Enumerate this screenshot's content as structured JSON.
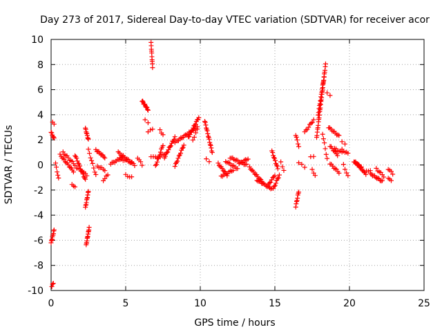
{
  "chart_data": {
    "type": "scatter",
    "title": "Day 273 of 2017, Sidereal Day-to-day VTEC variation (SDTVAR) for receiver acor",
    "xlabel": "GPS time / hours",
    "ylabel": "SDTVAR / TECUs",
    "xlim": [
      0,
      25
    ],
    "ylim": [
      -10,
      10
    ],
    "xticks": [
      "0",
      "5",
      "10",
      "15",
      "20",
      "25"
    ],
    "yticks": [
      "-10",
      "-8",
      "-6",
      "-4",
      "-2",
      "0",
      "2",
      "4",
      "6",
      "8",
      "10"
    ],
    "grid": true,
    "marker": "+",
    "color": "#ff0000",
    "segments": [
      {
        "x0": 0.0,
        "x1": 0.2,
        "y0": 2.6,
        "y1": 2.1,
        "n": 6
      },
      {
        "x0": 0.1,
        "x1": 0.2,
        "y0": 3.4,
        "y1": 3.2,
        "n": 2
      },
      {
        "x0": 0.0,
        "x1": 0.2,
        "y0": -6.2,
        "y1": -5.2,
        "n": 10
      },
      {
        "x0": 0.05,
        "x1": 0.15,
        "y0": -9.7,
        "y1": -9.4,
        "n": 3
      },
      {
        "x0": 0.3,
        "x1": 0.5,
        "y0": 0.1,
        "y1": -1.1,
        "n": 5
      },
      {
        "x0": 0.6,
        "x1": 1.5,
        "y0": 0.8,
        "y1": -0.5,
        "n": 14
      },
      {
        "x0": 0.8,
        "x1": 1.6,
        "y0": 1.0,
        "y1": 0.0,
        "n": 10
      },
      {
        "x0": 1.4,
        "x1": 1.6,
        "y0": -1.5,
        "y1": -1.8,
        "n": 3
      },
      {
        "x0": 1.6,
        "x1": 2.3,
        "y0": 0.8,
        "y1": -1.2,
        "n": 14
      },
      {
        "x0": 1.7,
        "x1": 2.4,
        "y0": -0.2,
        "y1": -0.8,
        "n": 8
      },
      {
        "x0": 2.3,
        "x1": 2.5,
        "y0": 2.9,
        "y1": 2.0,
        "n": 9
      },
      {
        "x0": 2.3,
        "x1": 2.5,
        "y0": -3.4,
        "y1": -2.1,
        "n": 10
      },
      {
        "x0": 2.35,
        "x1": 2.55,
        "y0": -6.4,
        "y1": -5.0,
        "n": 12
      },
      {
        "x0": 2.5,
        "x1": 3.0,
        "y0": 1.2,
        "y1": -0.8,
        "n": 8
      },
      {
        "x0": 3.0,
        "x1": 3.6,
        "y0": 1.2,
        "y1": 0.6,
        "n": 10
      },
      {
        "x0": 3.1,
        "x1": 3.6,
        "y0": -0.1,
        "y1": -0.4,
        "n": 6
      },
      {
        "x0": 3.5,
        "x1": 3.8,
        "y0": -1.2,
        "y1": -0.8,
        "n": 4
      },
      {
        "x0": 4.0,
        "x1": 4.8,
        "y0": 0.1,
        "y1": 0.6,
        "n": 10
      },
      {
        "x0": 4.5,
        "x1": 5.6,
        "y0": 1.0,
        "y1": 0.0,
        "n": 14
      },
      {
        "x0": 4.6,
        "x1": 5.4,
        "y0": 0.5,
        "y1": 0.2,
        "n": 8
      },
      {
        "x0": 5.0,
        "x1": 5.4,
        "y0": -0.8,
        "y1": -1.0,
        "n": 4
      },
      {
        "x0": 5.8,
        "x1": 6.1,
        "y0": 0.6,
        "y1": 0.0,
        "n": 4
      },
      {
        "x0": 6.1,
        "x1": 6.5,
        "y0": 5.1,
        "y1": 4.4,
        "n": 12
      },
      {
        "x0": 6.3,
        "x1": 6.5,
        "y0": 3.6,
        "y1": 3.3,
        "n": 2
      },
      {
        "x0": 6.5,
        "x1": 6.8,
        "y0": 2.6,
        "y1": 2.9,
        "n": 3
      },
      {
        "x0": 6.7,
        "x1": 6.8,
        "y0": 9.7,
        "y1": 7.8,
        "n": 10
      },
      {
        "x0": 6.7,
        "x1": 7.0,
        "y0": 0.6,
        "y1": 0.7,
        "n": 3
      },
      {
        "x0": 7.0,
        "x1": 7.5,
        "y0": -0.1,
        "y1": 1.6,
        "n": 10
      },
      {
        "x0": 7.1,
        "x1": 7.6,
        "y0": 0.5,
        "y1": 0.9,
        "n": 6
      },
      {
        "x0": 7.3,
        "x1": 7.5,
        "y0": 2.8,
        "y1": 2.4,
        "n": 3
      },
      {
        "x0": 7.6,
        "x1": 8.3,
        "y0": 0.6,
        "y1": 2.2,
        "n": 14
      },
      {
        "x0": 8.3,
        "x1": 8.9,
        "y0": -0.1,
        "y1": 1.6,
        "n": 12
      },
      {
        "x0": 8.3,
        "x1": 9.8,
        "y0": 1.8,
        "y1": 3.0,
        "n": 20
      },
      {
        "x0": 9.2,
        "x1": 9.9,
        "y0": 2.2,
        "y1": 3.8,
        "n": 14
      },
      {
        "x0": 9.5,
        "x1": 9.8,
        "y0": 2.0,
        "y1": 2.8,
        "n": 4
      },
      {
        "x0": 10.3,
        "x1": 10.8,
        "y0": 3.5,
        "y1": 1.0,
        "n": 16
      },
      {
        "x0": 10.4,
        "x1": 10.6,
        "y0": 0.5,
        "y1": 0.2,
        "n": 2
      },
      {
        "x0": 11.2,
        "x1": 11.8,
        "y0": 0.1,
        "y1": -0.8,
        "n": 10
      },
      {
        "x0": 11.4,
        "x1": 12.2,
        "y0": -0.9,
        "y1": -0.4,
        "n": 10
      },
      {
        "x0": 11.7,
        "x1": 12.5,
        "y0": 0.3,
        "y1": -0.3,
        "n": 10
      },
      {
        "x0": 12.0,
        "x1": 13.1,
        "y0": 0.6,
        "y1": 0.0,
        "n": 14
      },
      {
        "x0": 12.6,
        "x1": 13.2,
        "y0": 0.1,
        "y1": 0.5,
        "n": 8
      },
      {
        "x0": 13.3,
        "x1": 14.2,
        "y0": -0.2,
        "y1": -1.4,
        "n": 14
      },
      {
        "x0": 13.8,
        "x1": 14.8,
        "y0": -1.2,
        "y1": -1.9,
        "n": 14
      },
      {
        "x0": 14.5,
        "x1": 15.0,
        "y0": -1.7,
        "y1": -0.8,
        "n": 8
      },
      {
        "x0": 14.8,
        "x1": 15.2,
        "y0": 1.1,
        "y1": -0.3,
        "n": 10
      },
      {
        "x0": 14.9,
        "x1": 15.3,
        "y0": -1.9,
        "y1": -0.8,
        "n": 8
      },
      {
        "x0": 15.4,
        "x1": 15.6,
        "y0": 0.2,
        "y1": -0.4,
        "n": 3
      },
      {
        "x0": 16.4,
        "x1": 16.6,
        "y0": -3.3,
        "y1": -2.1,
        "n": 8
      },
      {
        "x0": 16.4,
        "x1": 16.6,
        "y0": 2.4,
        "y1": 1.5,
        "n": 5
      },
      {
        "x0": 16.6,
        "x1": 17.0,
        "y0": 0.2,
        "y1": -0.2,
        "n": 3
      },
      {
        "x0": 17.0,
        "x1": 17.6,
        "y0": 2.6,
        "y1": 3.6,
        "n": 8
      },
      {
        "x0": 17.4,
        "x1": 17.6,
        "y0": 0.6,
        "y1": 0.7,
        "n": 2
      },
      {
        "x0": 17.5,
        "x1": 17.7,
        "y0": -0.4,
        "y1": -0.8,
        "n": 3
      },
      {
        "x0": 17.8,
        "x1": 18.4,
        "y0": 2.2,
        "y1": 8.0,
        "n": 30
      },
      {
        "x0": 17.9,
        "x1": 18.3,
        "y0": 4.0,
        "y1": 7.0,
        "n": 14
      },
      {
        "x0": 18.2,
        "x1": 18.5,
        "y0": 2.5,
        "y1": 0.5,
        "n": 6
      },
      {
        "x0": 18.5,
        "x1": 18.7,
        "y0": 5.8,
        "y1": 5.5,
        "n": 2
      },
      {
        "x0": 18.6,
        "x1": 19.3,
        "y0": 3.0,
        "y1": 2.3,
        "n": 10
      },
      {
        "x0": 18.7,
        "x1": 19.2,
        "y0": 1.5,
        "y1": 0.8,
        "n": 8
      },
      {
        "x0": 18.7,
        "x1": 19.3,
        "y0": 0.1,
        "y1": -0.6,
        "n": 8
      },
      {
        "x0": 19.0,
        "x1": 19.5,
        "y0": 1.3,
        "y1": 1.0,
        "n": 6
      },
      {
        "x0": 19.5,
        "x1": 19.9,
        "y0": 1.2,
        "y1": 0.9,
        "n": 5
      },
      {
        "x0": 19.5,
        "x1": 19.7,
        "y0": 1.8,
        "y1": 1.7,
        "n": 2
      },
      {
        "x0": 19.6,
        "x1": 19.9,
        "y0": 0.0,
        "y1": -0.9,
        "n": 4
      },
      {
        "x0": 20.3,
        "x1": 20.8,
        "y0": 0.3,
        "y1": -0.2,
        "n": 10
      },
      {
        "x0": 20.4,
        "x1": 21.1,
        "y0": 0.2,
        "y1": -0.7,
        "n": 12
      },
      {
        "x0": 21.0,
        "x1": 21.4,
        "y0": -0.6,
        "y1": -0.4,
        "n": 4
      },
      {
        "x0": 21.4,
        "x1": 22.2,
        "y0": -0.7,
        "y1": -1.3,
        "n": 12
      },
      {
        "x0": 21.8,
        "x1": 22.3,
        "y0": -0.3,
        "y1": -0.9,
        "n": 6
      },
      {
        "x0": 22.6,
        "x1": 22.9,
        "y0": -0.3,
        "y1": -0.7,
        "n": 4
      },
      {
        "x0": 22.6,
        "x1": 22.8,
        "y0": -1.0,
        "y1": -1.3,
        "n": 3
      }
    ]
  }
}
